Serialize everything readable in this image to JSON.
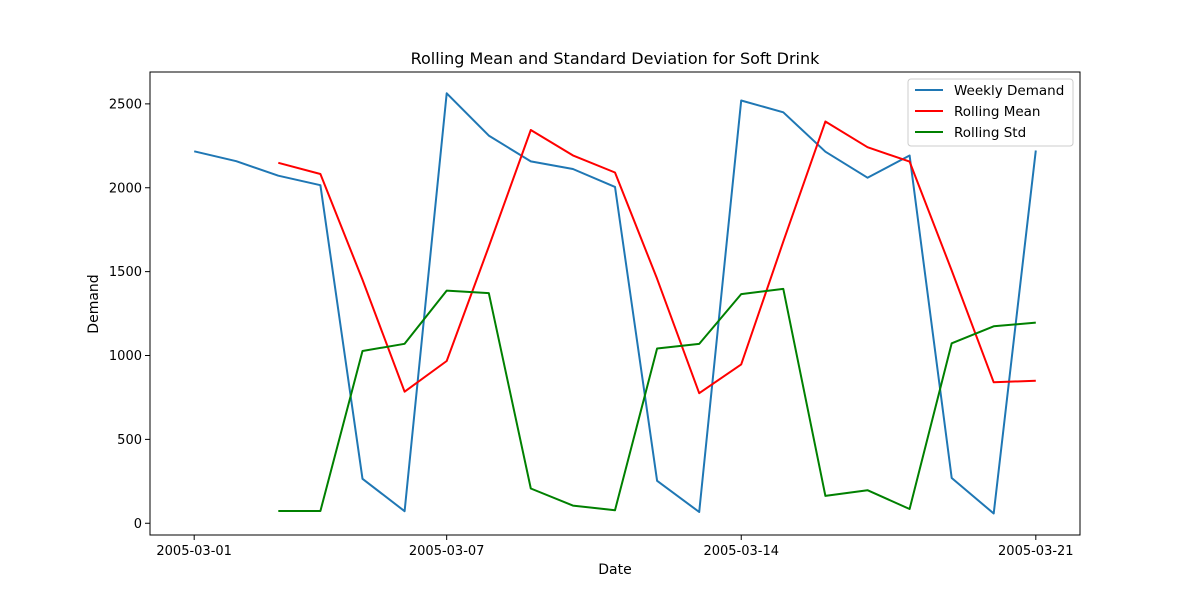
{
  "chart_data": {
    "type": "line",
    "title": "Rolling Mean and Standard Deviation for Soft Drink",
    "xlabel": "Date",
    "ylabel": "Demand",
    "x_ticks": [
      "2005-03-01",
      "2005-03-07",
      "2005-03-14",
      "2005-03-21"
    ],
    "x_tick_days": [
      0,
      6,
      13,
      20
    ],
    "y_ticks": [
      0,
      500,
      1000,
      1500,
      2000,
      2500
    ],
    "xlim": [
      -1.05,
      21.05
    ],
    "ylim": [
      -70,
      2690
    ],
    "x": [
      "2005-03-01",
      "2005-03-02",
      "2005-03-03",
      "2005-03-04",
      "2005-03-05",
      "2005-03-06",
      "2005-03-07",
      "2005-03-08",
      "2005-03-09",
      "2005-03-10",
      "2005-03-11",
      "2005-03-12",
      "2005-03-13",
      "2005-03-14",
      "2005-03-15",
      "2005-03-16",
      "2005-03-17",
      "2005-03-18",
      "2005-03-19",
      "2005-03-20",
      "2005-03-21"
    ],
    "legend_position": "top-right",
    "grid": false,
    "series": [
      {
        "name": "Weekly Demand",
        "color": "#1f77b4",
        "values": [
          2217,
          2158,
          2072,
          2015,
          265,
          72,
          2563,
          2311,
          2157,
          2112,
          2005,
          253,
          67,
          2520,
          2450,
          2215,
          2060,
          2192,
          270,
          58,
          2222
        ]
      },
      {
        "name": "Rolling Mean",
        "color": "#ff0000",
        "values": [
          null,
          null,
          2149,
          2082,
          1451,
          784,
          967,
          1649,
          2344,
          2193,
          2091,
          1457,
          775,
          947,
          1679,
          2395,
          2242,
          2156,
          1507,
          840,
          850
        ]
      },
      {
        "name": "Rolling Std",
        "color": "#008000",
        "values": [
          null,
          null,
          73,
          73,
          1027,
          1070,
          1387,
          1372,
          207,
          105,
          78,
          1042,
          1069,
          1366,
          1397,
          163,
          197,
          85,
          1073,
          1174,
          1196
        ]
      }
    ]
  }
}
